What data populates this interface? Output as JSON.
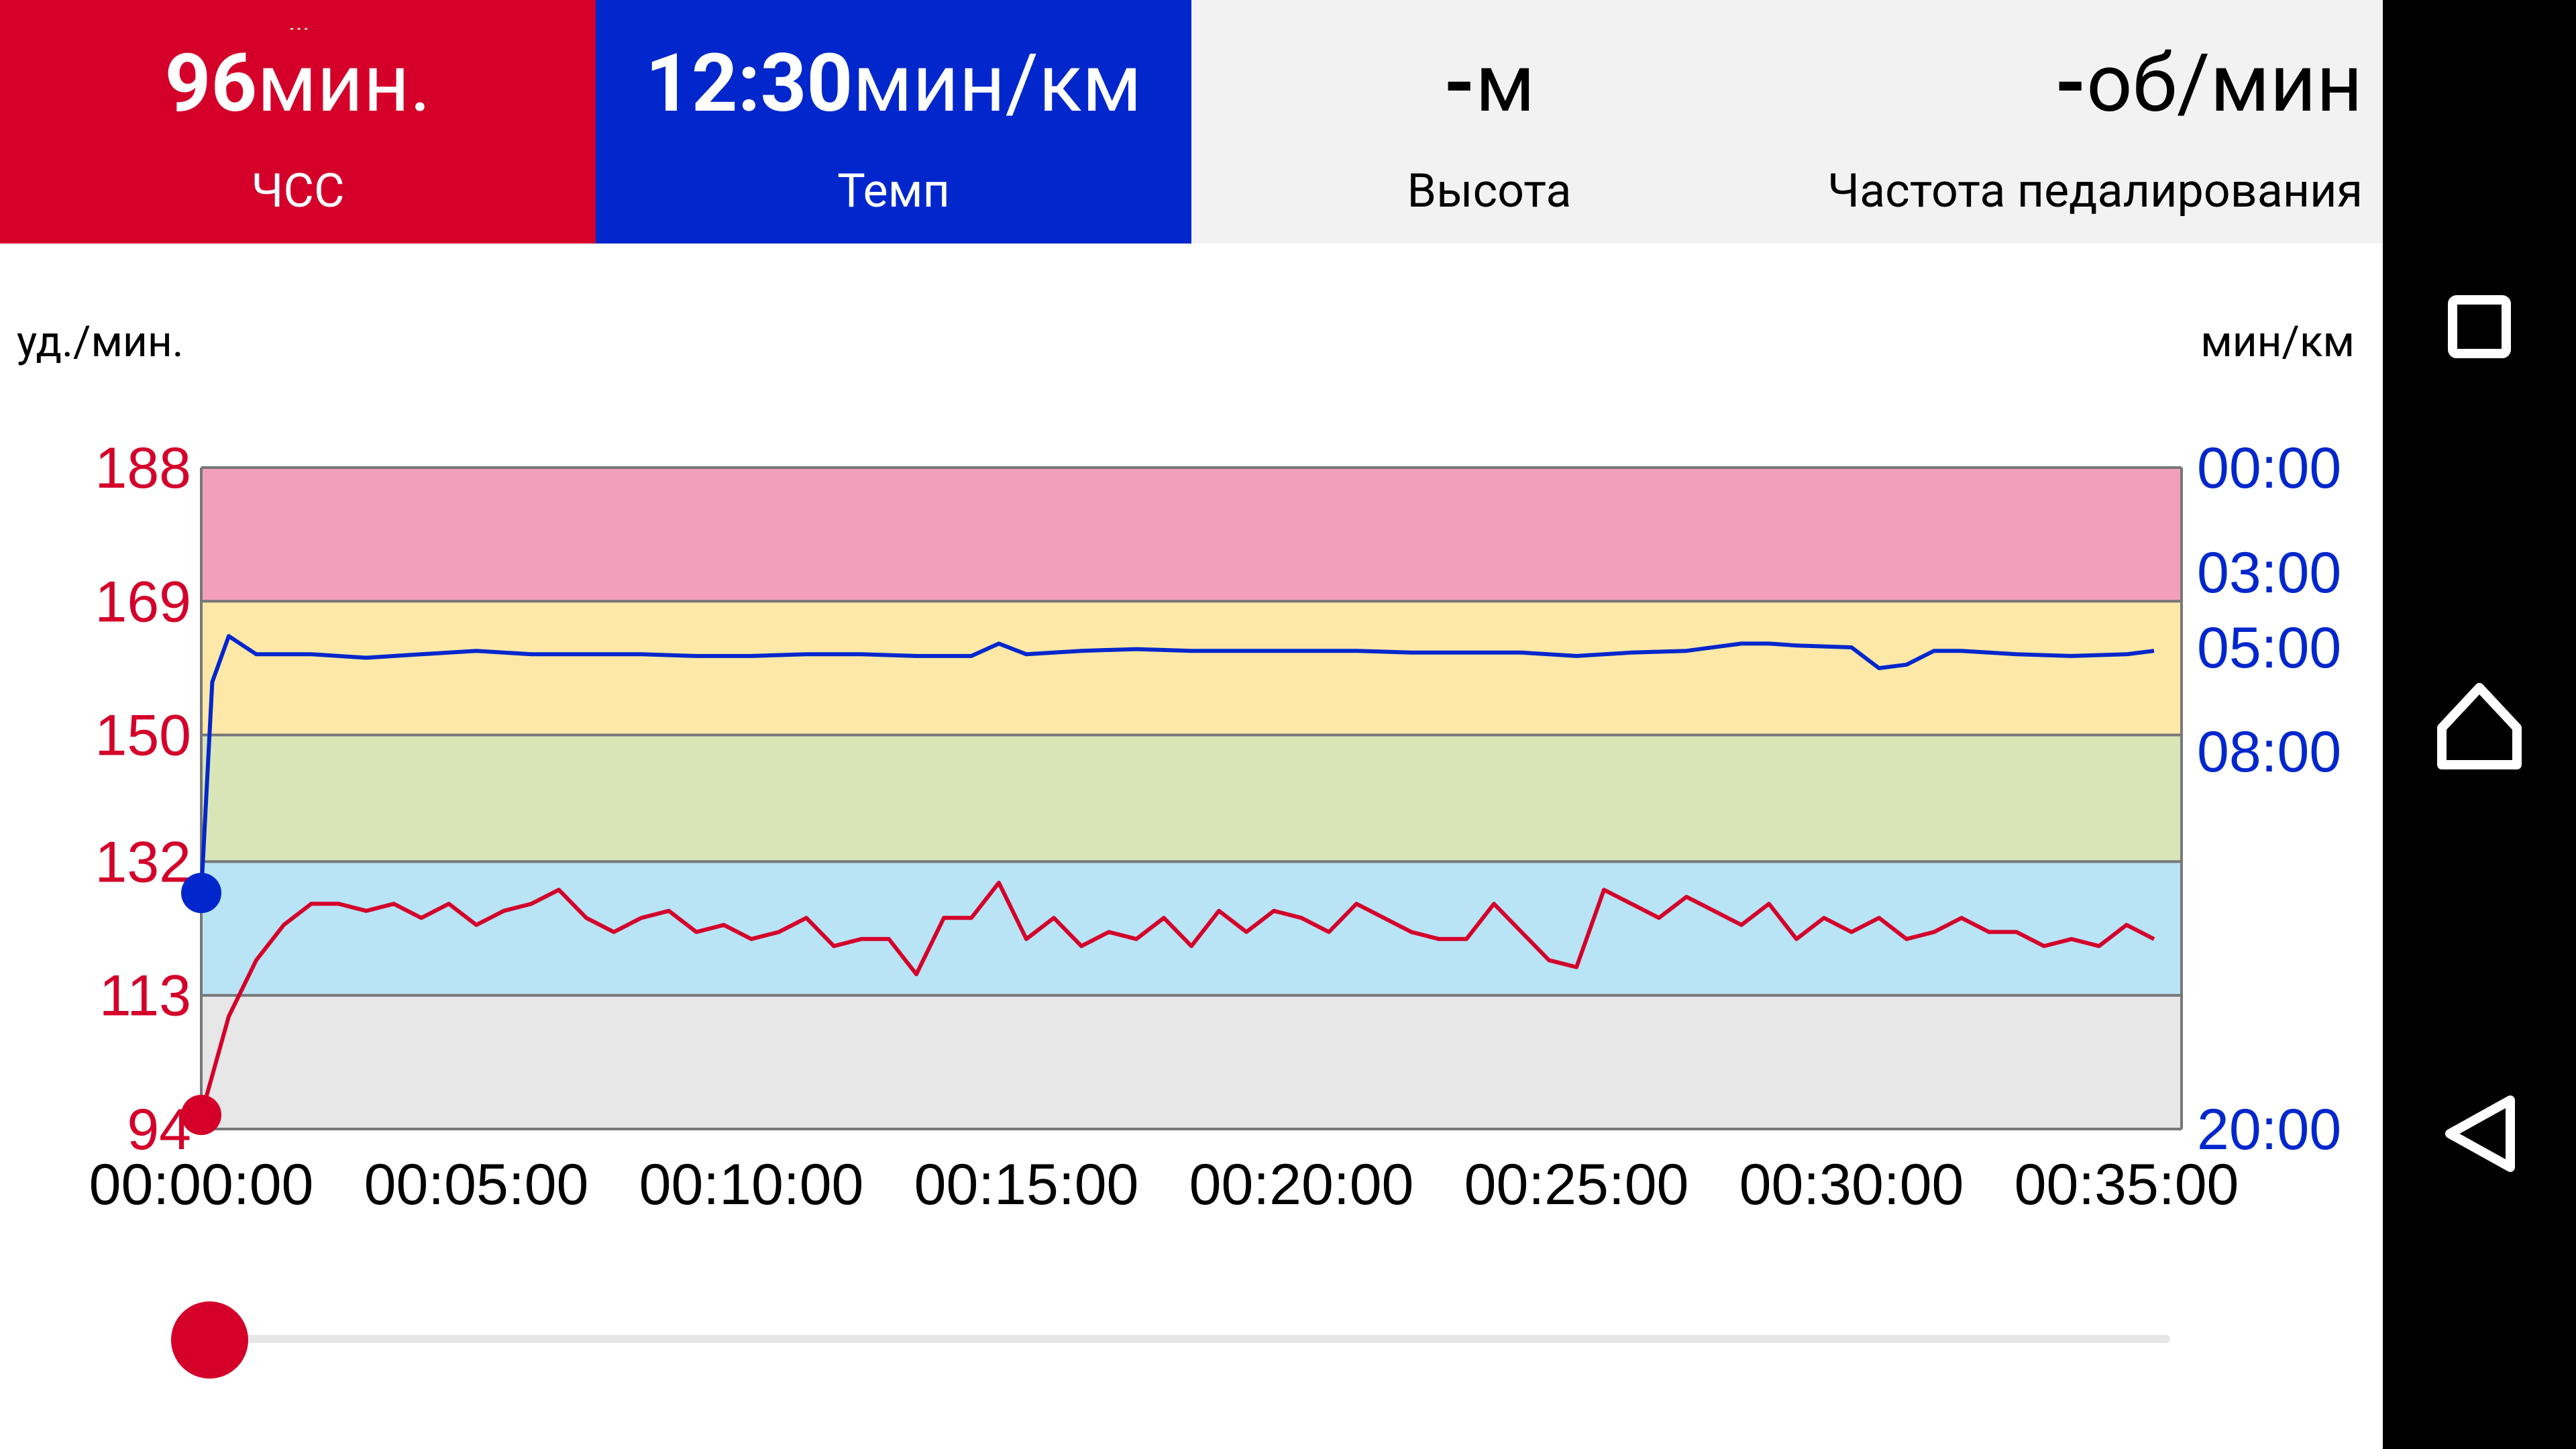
{
  "tiles": {
    "hr": {
      "value": "96",
      "unit": "мин.",
      "label": "ЧСС",
      "cutoff": "..."
    },
    "pace": {
      "value": "12:30",
      "unit": "мин/км",
      "label": "Темп"
    },
    "altitude": {
      "value": "-",
      "unit": "м",
      "label": "Высота"
    },
    "cadence": {
      "value": "-",
      "unit": "об/мин",
      "label": "Частота педалирования"
    }
  },
  "chart": {
    "left_unit": "уд./мин.",
    "right_unit": "мин/км",
    "hr_ticks": [
      "188",
      "169",
      "150",
      "132",
      "113",
      "94"
    ],
    "pace_ticks": [
      "00:00",
      "03:00",
      "05:00",
      "08:00",
      "20:00"
    ],
    "x_ticks": [
      "00:00:00",
      "00:05:00",
      "00:10:00",
      "00:15:00",
      "00:20:00",
      "00:25:00",
      "00:30:00",
      "00:35:00"
    ]
  },
  "colors": {
    "hr": "#d4002a",
    "pace": "#0127cc",
    "zone5": "#f29fbc",
    "zone4": "#fde8a7",
    "zone3": "#d9e5b6",
    "zone2": "#b8e4f5",
    "zone1": "#e7e7e7"
  },
  "chart_data": {
    "type": "line",
    "xlabel": "",
    "ylabel": "уд./мин.",
    "y2label": "мин/км",
    "x_range": [
      "00:00:00",
      "00:35:00"
    ],
    "ylim": [
      94,
      188
    ],
    "y_ticks": [
      188,
      169,
      150,
      132,
      113,
      94
    ],
    "y2_ticks": [
      "00:00",
      "03:00",
      "05:00",
      "08:00",
      "20:00"
    ],
    "zones": [
      {
        "from": 169,
        "to": 188,
        "color": "#f29fbc"
      },
      {
        "from": 150,
        "to": 169,
        "color": "#fde8a7"
      },
      {
        "from": 132,
        "to": 150,
        "color": "#d9e5b6"
      },
      {
        "from": 113,
        "to": 132,
        "color": "#b8e4f5"
      },
      {
        "from": 94,
        "to": 113,
        "color": "#e7e7e7"
      }
    ],
    "series": [
      {
        "name": "ЧСС",
        "color": "#d4002a",
        "x_minutes": [
          0,
          0.5,
          1,
          1.5,
          2,
          2.5,
          3,
          3.5,
          4,
          4.5,
          5,
          5.5,
          6,
          6.5,
          7,
          7.5,
          8,
          8.5,
          9,
          9.5,
          10,
          10.5,
          11,
          11.5,
          12,
          12.5,
          13,
          13.5,
          14,
          14.5,
          15,
          15.5,
          16,
          16.5,
          17,
          17.5,
          18,
          18.5,
          19,
          19.5,
          20,
          20.5,
          21,
          21.5,
          22,
          22.5,
          23,
          23.5,
          24,
          24.5,
          25,
          25.5,
          26,
          26.5,
          27,
          27.5,
          28,
          28.5,
          29,
          29.5,
          30,
          30.5,
          31,
          31.5,
          32,
          32.5,
          33,
          33.5,
          34,
          34.5,
          35,
          35.5
        ],
        "values": [
          96,
          110,
          118,
          123,
          126,
          126,
          125,
          126,
          124,
          126,
          123,
          125,
          126,
          128,
          124,
          122,
          124,
          125,
          122,
          123,
          121,
          122,
          124,
          120,
          121,
          121,
          116,
          124,
          124,
          129,
          121,
          124,
          120,
          122,
          121,
          124,
          120,
          125,
          122,
          125,
          124,
          122,
          126,
          124,
          122,
          121,
          121,
          126,
          122,
          118,
          117,
          128,
          126,
          124,
          127,
          125,
          123,
          126,
          121,
          124,
          122,
          124,
          121,
          122,
          124,
          122,
          122,
          120,
          121,
          120,
          123,
          121
        ]
      },
      {
        "name": "Темп",
        "color": "#0127cc",
        "x_minutes": [
          0,
          0.2,
          0.5,
          1,
          2,
          3,
          4,
          5,
          6,
          7,
          8,
          9,
          10,
          11,
          12,
          13,
          14,
          14.5,
          15,
          16,
          17,
          18,
          19,
          20,
          21,
          22,
          23,
          24,
          25,
          26,
          27,
          28,
          28.5,
          29,
          30,
          30.5,
          31,
          31.5,
          32,
          33,
          34,
          35,
          35.5
        ],
        "values_min_per_km": [
          12.5,
          6.0,
          4.7,
          5.2,
          5.2,
          5.3,
          5.2,
          5.1,
          5.2,
          5.2,
          5.2,
          5.25,
          5.25,
          5.2,
          5.2,
          5.25,
          5.25,
          4.9,
          5.2,
          5.1,
          5.05,
          5.1,
          5.1,
          5.1,
          5.1,
          5.15,
          5.15,
          5.15,
          5.25,
          5.15,
          5.1,
          4.9,
          4.9,
          4.95,
          5.0,
          5.6,
          5.5,
          5.1,
          5.1,
          5.2,
          5.25,
          5.2,
          5.1
        ]
      }
    ]
  }
}
